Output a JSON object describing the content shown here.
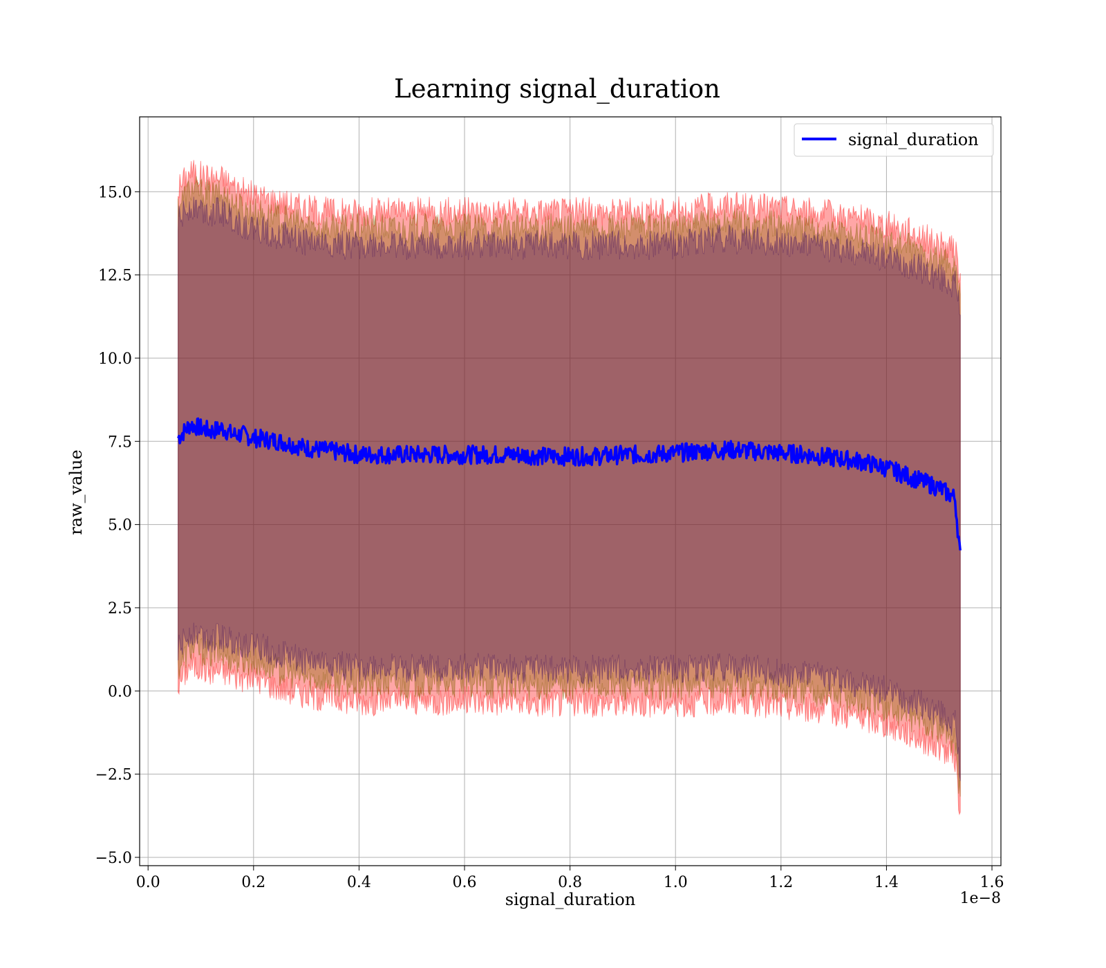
{
  "chart_data": {
    "type": "line",
    "title": "Learning signal_duration",
    "xlabel": "signal_duration",
    "ylabel": "raw_value",
    "x_offset_label": "1e−8",
    "xlim": [
      -0.016,
      1.617
    ],
    "ylim": [
      -5.25,
      17.25
    ],
    "x_ticks": [
      0.0,
      0.2,
      0.4,
      0.6,
      0.8,
      1.0,
      1.2,
      1.4,
      1.6
    ],
    "x_tick_labels": [
      "0.0",
      "0.2",
      "0.4",
      "0.6",
      "0.8",
      "1.0",
      "1.2",
      "1.4",
      "1.6"
    ],
    "y_ticks": [
      -5.0,
      -2.5,
      0.0,
      2.5,
      5.0,
      7.5,
      10.0,
      12.5,
      15.0
    ],
    "y_tick_labels": [
      "−5.0",
      "−2.5",
      "0.0",
      "2.5",
      "5.0",
      "7.5",
      "10.0",
      "12.5",
      "15.0"
    ],
    "grid": true,
    "legend_position": "top-right",
    "series": [
      {
        "name": "signal_duration",
        "color": "#0000ff",
        "x": [
          0.057,
          0.08,
          0.1,
          0.12,
          0.14,
          0.16,
          0.18,
          0.2,
          0.25,
          0.3,
          0.35,
          0.4,
          0.45,
          0.5,
          0.55,
          0.6,
          0.65,
          0.7,
          0.75,
          0.8,
          0.85,
          0.9,
          0.95,
          1.0,
          1.05,
          1.1,
          1.15,
          1.2,
          1.25,
          1.3,
          1.35,
          1.4,
          1.45,
          1.5,
          1.53,
          1.54
        ],
        "y": [
          7.6,
          8.0,
          7.9,
          7.8,
          7.9,
          7.7,
          7.7,
          7.6,
          7.5,
          7.3,
          7.2,
          7.1,
          7.1,
          7.1,
          7.1,
          7.1,
          7.1,
          7.1,
          7.05,
          7.05,
          7.05,
          7.1,
          7.1,
          7.15,
          7.2,
          7.25,
          7.2,
          7.15,
          7.1,
          7.0,
          6.9,
          6.7,
          6.4,
          6.1,
          5.8,
          4.0
        ]
      }
    ],
    "bands": [
      {
        "color": "#ff0000",
        "lower": [
          0.2,
          0.8,
          0.7,
          0.6,
          0.6,
          0.5,
          0.4,
          0.4,
          0.1,
          -0.1,
          -0.2,
          -0.3,
          -0.3,
          -0.3,
          -0.3,
          -0.3,
          -0.3,
          -0.35,
          -0.35,
          -0.35,
          -0.35,
          -0.35,
          -0.35,
          -0.35,
          -0.35,
          -0.3,
          -0.35,
          -0.45,
          -0.5,
          -0.6,
          -0.8,
          -1.0,
          -1.3,
          -1.7,
          -2.0,
          -3.8
        ],
        "upper": [
          15.1,
          15.6,
          15.5,
          15.4,
          15.4,
          15.2,
          15.0,
          14.9,
          14.7,
          14.5,
          14.4,
          14.4,
          14.4,
          14.4,
          14.4,
          14.4,
          14.4,
          14.4,
          14.4,
          14.4,
          14.4,
          14.4,
          14.4,
          14.4,
          14.5,
          14.6,
          14.5,
          14.5,
          14.4,
          14.3,
          14.2,
          14.0,
          13.8,
          13.4,
          13.2,
          12.4
        ]
      },
      {
        "color": "#806000",
        "lower": [
          0.7,
          1.3,
          1.2,
          1.1,
          1.1,
          1.0,
          0.9,
          0.9,
          0.6,
          0.4,
          0.3,
          0.2,
          0.2,
          0.2,
          0.2,
          0.2,
          0.2,
          0.15,
          0.15,
          0.15,
          0.15,
          0.15,
          0.15,
          0.15,
          0.15,
          0.2,
          0.15,
          0.05,
          0.0,
          -0.1,
          -0.3,
          -0.5,
          -0.8,
          -1.2,
          -1.5,
          -3.2
        ],
        "upper": [
          14.6,
          15.1,
          15.0,
          14.9,
          14.9,
          14.7,
          14.5,
          14.4,
          14.2,
          14.0,
          13.9,
          13.9,
          13.9,
          13.9,
          13.9,
          13.9,
          13.9,
          13.9,
          13.9,
          13.9,
          13.9,
          13.9,
          13.9,
          13.9,
          14.0,
          14.1,
          14.0,
          14.0,
          13.9,
          13.8,
          13.7,
          13.5,
          13.3,
          12.9,
          12.7,
          11.9
        ]
      },
      {
        "color": "#401060",
        "lower": [
          1.2,
          1.8,
          1.7,
          1.6,
          1.6,
          1.5,
          1.4,
          1.4,
          1.1,
          0.9,
          0.8,
          0.7,
          0.7,
          0.7,
          0.7,
          0.7,
          0.7,
          0.65,
          0.65,
          0.65,
          0.65,
          0.65,
          0.65,
          0.65,
          0.65,
          0.7,
          0.65,
          0.55,
          0.5,
          0.4,
          0.2,
          0.0,
          -0.3,
          -0.7,
          -1.0,
          -2.6
        ],
        "upper": [
          14.1,
          14.6,
          14.5,
          14.4,
          14.4,
          14.2,
          14.0,
          13.9,
          13.7,
          13.5,
          13.4,
          13.4,
          13.4,
          13.4,
          13.4,
          13.4,
          13.4,
          13.4,
          13.4,
          13.4,
          13.4,
          13.4,
          13.4,
          13.4,
          13.5,
          13.6,
          13.5,
          13.5,
          13.4,
          13.3,
          13.2,
          13.0,
          12.8,
          12.4,
          12.2,
          11.4
        ]
      }
    ]
  }
}
